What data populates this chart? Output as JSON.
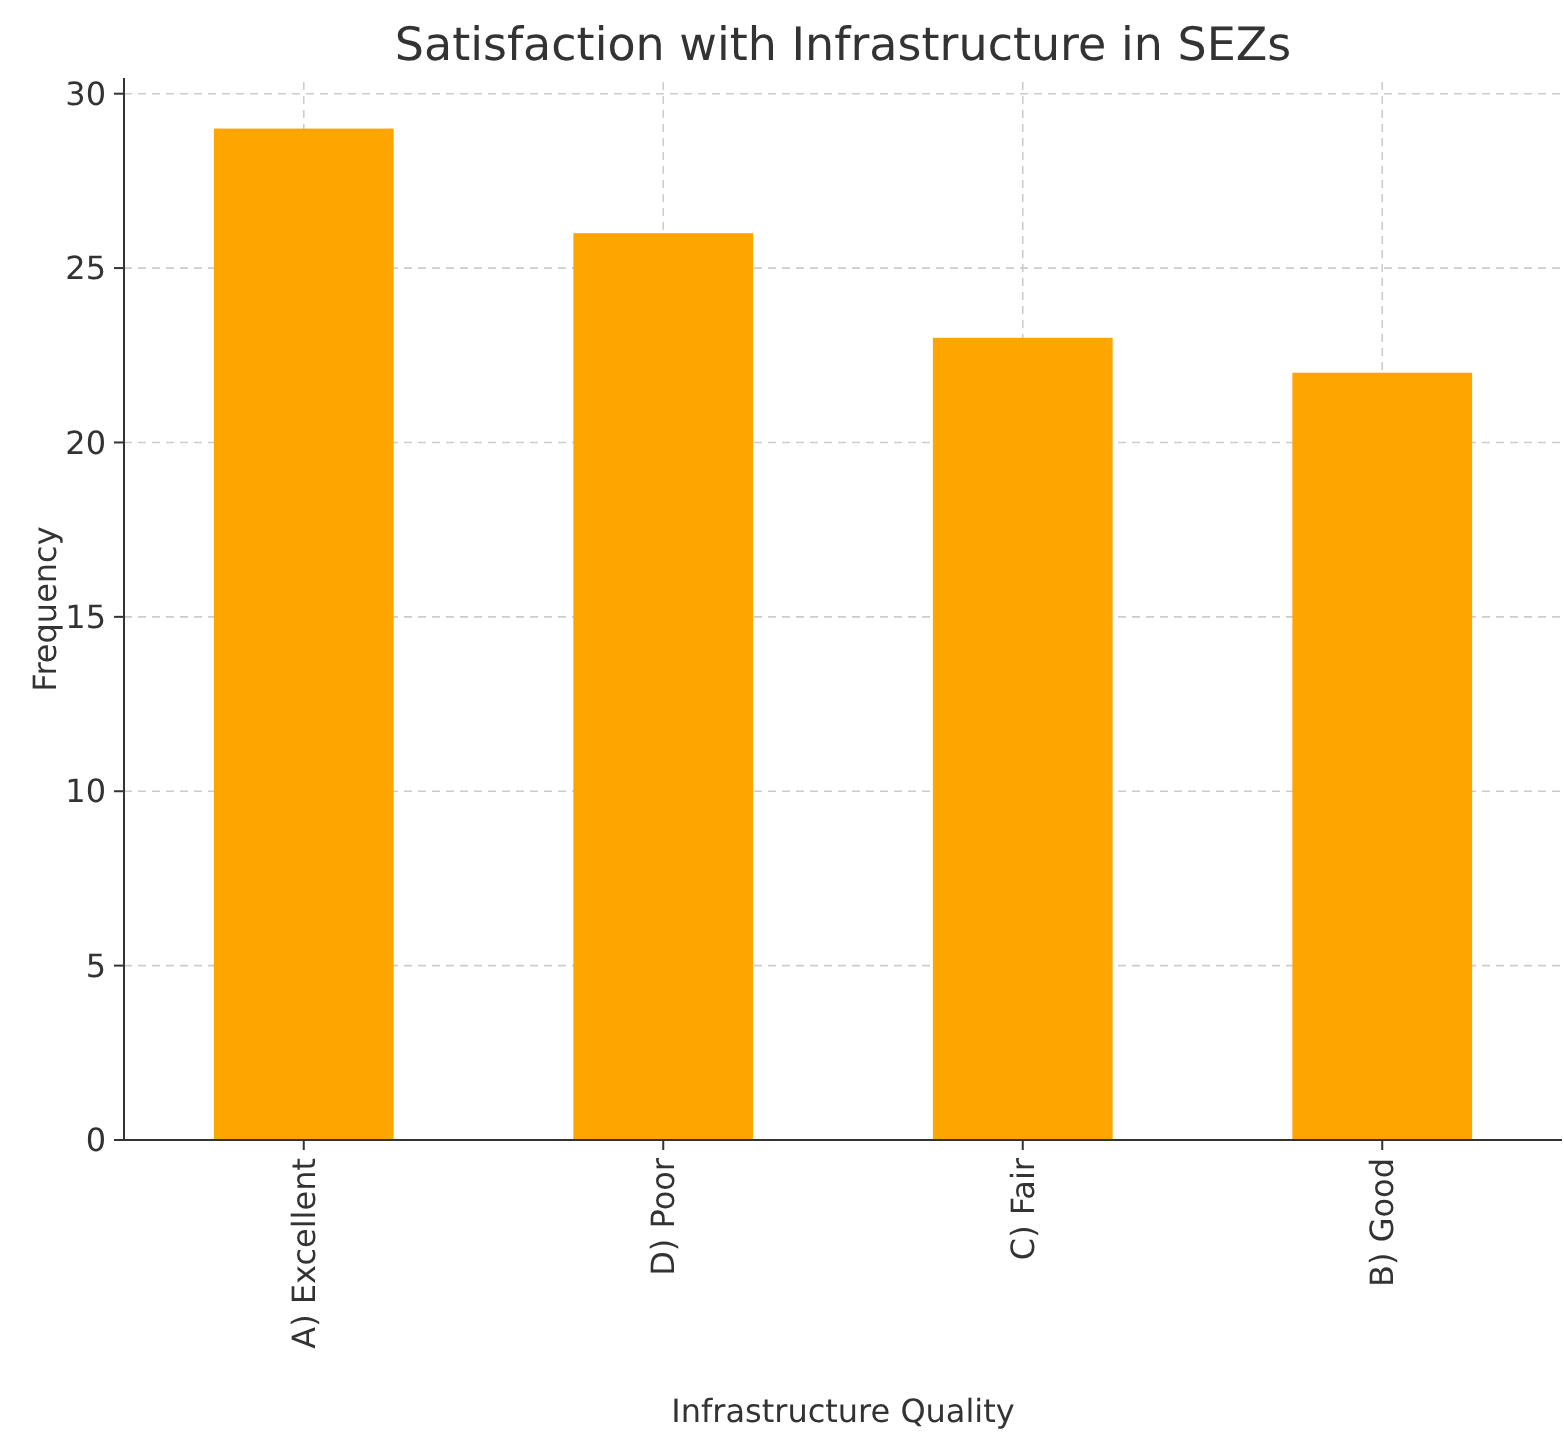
{
  "chart_data": {
    "type": "bar",
    "title": "Satisfaction with Infrastructure in SEZs",
    "xlabel": "Infrastructure Quality",
    "ylabel": "Frequency",
    "categories": [
      "A) Excellent",
      "D) Poor",
      "C) Fair",
      "B) Good"
    ],
    "values": [
      29,
      26,
      23,
      22
    ],
    "color": "#ffa500",
    "ylim": [
      0,
      30.45
    ],
    "yticks": [
      0,
      5,
      10,
      15,
      20,
      25,
      30
    ],
    "grid": true
  }
}
